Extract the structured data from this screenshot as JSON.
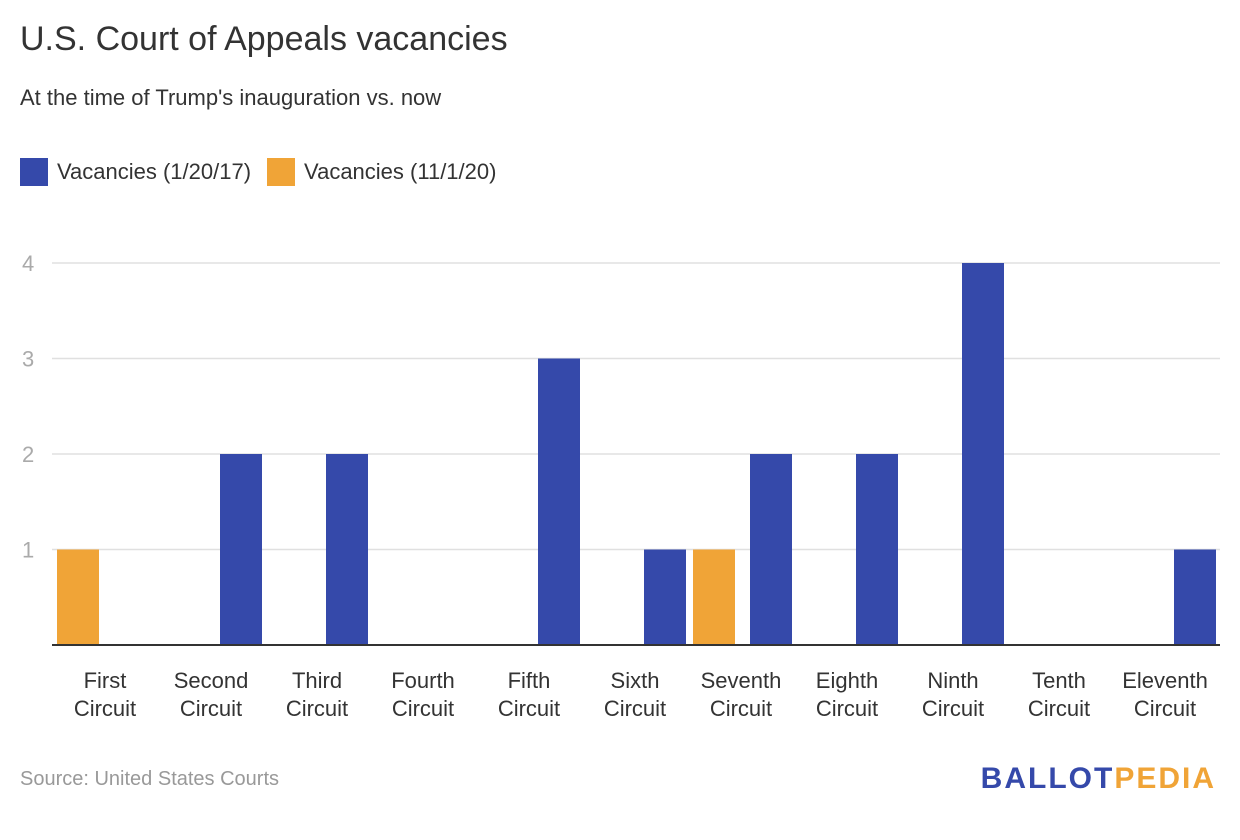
{
  "header": {
    "title": "U.S. Court of Appeals vacancies",
    "subtitle": "At the time of Trump's inauguration vs. now"
  },
  "footer": {
    "source": "Source: United States Courts",
    "logo_part1": "BALLOT",
    "logo_part2": "PEDIA"
  },
  "colors": {
    "series1": "#3549AA",
    "series2": "#F0A437",
    "gridline": "#e0e0e0",
    "axis": "#333333",
    "tick_label": "#aaaaaa",
    "category_label": "#333333"
  },
  "chart_data": {
    "type": "bar",
    "title": "U.S. Court of Appeals vacancies",
    "subtitle": "At the time of Trump's inauguration vs. now",
    "xlabel": "",
    "ylabel": "",
    "ylim": [
      0,
      4
    ],
    "yticks": [
      "1",
      "2",
      "3",
      "4"
    ],
    "grid": true,
    "legend_position": "top-left",
    "categories": [
      [
        "First",
        "Circuit"
      ],
      [
        "Second",
        "Circuit"
      ],
      [
        "Third",
        "Circuit"
      ],
      [
        "Fourth",
        "Circuit"
      ],
      [
        "Fifth",
        "Circuit"
      ],
      [
        "Sixth",
        "Circuit"
      ],
      [
        "Seventh",
        "Circuit"
      ],
      [
        "Eighth",
        "Circuit"
      ],
      [
        "Ninth",
        "Circuit"
      ],
      [
        "Tenth",
        "Circuit"
      ],
      [
        "Eleventh",
        "Circuit"
      ]
    ],
    "series": [
      {
        "name": "Vacancies (1/20/17)",
        "color": "#3549AA",
        "values": [
          0,
          2,
          2,
          0,
          3,
          1,
          2,
          2,
          4,
          0,
          1
        ]
      },
      {
        "name": "Vacancies (11/1/20)",
        "color": "#F0A437",
        "values": [
          1,
          0,
          0,
          0,
          0,
          0,
          1,
          0,
          0,
          0,
          0
        ]
      }
    ]
  }
}
